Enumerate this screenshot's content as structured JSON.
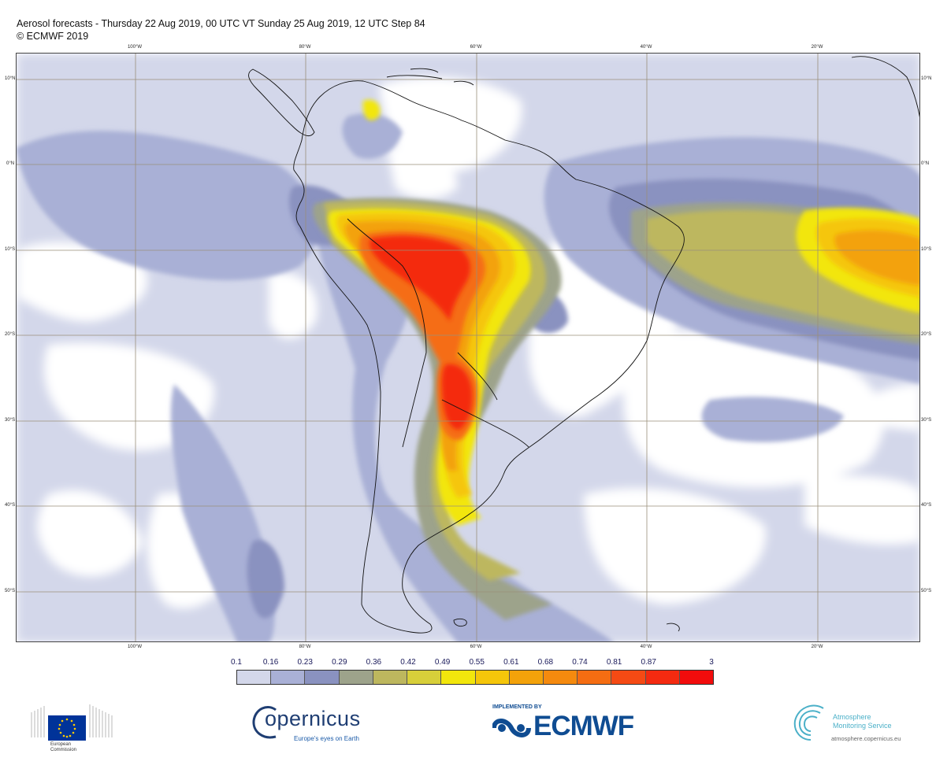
{
  "title": {
    "line1": "Aerosol forecasts - Thursday 22 Aug 2019, 00 UTC VT Sunday 25 Aug 2019, 12 UTC Step 84",
    "line2": "© ECMWF 2019"
  },
  "map": {
    "lon_labels": [
      "100°W",
      "80°W",
      "60°W",
      "40°W",
      "20°W"
    ],
    "lat_labels": [
      "10°N",
      "0°N",
      "10°S",
      "20°S",
      "30°S",
      "40°S",
      "50°S"
    ]
  },
  "legend": {
    "ticks": [
      "0.1",
      "0.16",
      "0.23",
      "0.29",
      "0.36",
      "0.42",
      "0.49",
      "0.55",
      "0.61",
      "0.68",
      "0.74",
      "0.81",
      "0.87",
      "3"
    ],
    "colors": [
      "#d3d7ea",
      "#a9b0d6",
      "#8a92c0",
      "#9da38b",
      "#bdb75e",
      "#d7cf3a",
      "#f2e60c",
      "#f5c60a",
      "#f3a20a",
      "#f58a0e",
      "#f56d12",
      "#f54a14",
      "#f42a10"
    ]
  },
  "logos": {
    "eu_text_1": "European",
    "eu_text_2": "Commission",
    "copernicus_word": "opernicus",
    "copernicus_tagline": "Europe's eyes on Earth",
    "ecmwf_implemented": "IMPLEMENTED BY",
    "ecmwf_word": "ECMWF",
    "ams_line1": "Atmosphere",
    "ams_line2": "Monitoring Service",
    "ams_url": "atmosphere.copernicus.eu"
  }
}
